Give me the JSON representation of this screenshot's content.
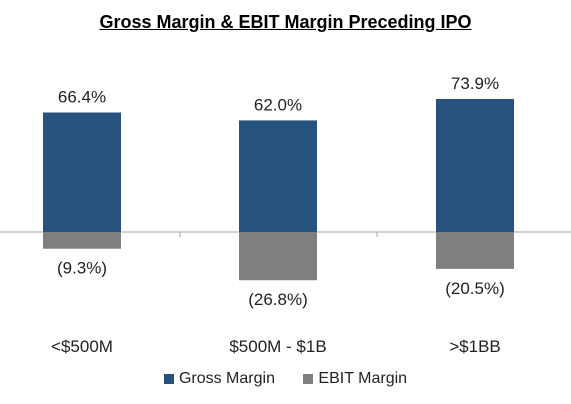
{
  "chart_data": {
    "type": "bar",
    "title": "Gross Margin & EBIT Margin Preceding IPO",
    "categories": [
      "<$500M",
      "$500M - $1B",
      ">$1BB"
    ],
    "series": [
      {
        "name": "Gross Margin",
        "values": [
          66.4,
          62.0,
          73.9
        ],
        "labels": [
          "66.4%",
          "62.0%",
          "73.9%"
        ],
        "color": "#27527e"
      },
      {
        "name": "EBIT Margin",
        "values": [
          -9.3,
          -26.8,
          -20.5
        ],
        "labels": [
          "(9.3%)",
          "(26.8%)",
          "(20.5%)"
        ],
        "color": "#7f7f7f"
      }
    ],
    "axis_color": "#a6a6a6",
    "legend_position": "bottom"
  }
}
